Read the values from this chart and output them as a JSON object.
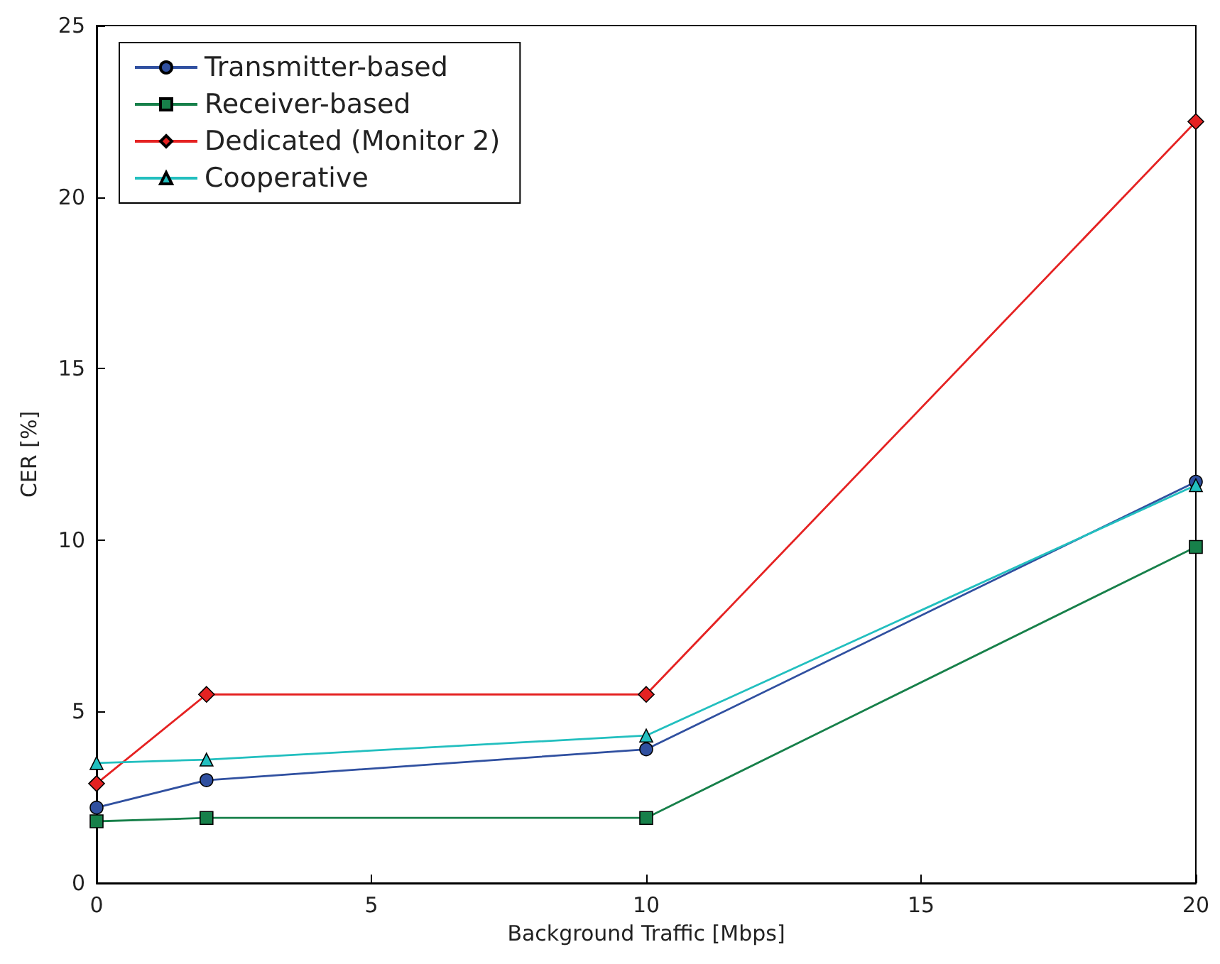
{
  "chart_data": {
    "type": "line",
    "xlabel": "Background Traffic [Mbps]",
    "ylabel": "CER [%]",
    "x": [
      0,
      2,
      10,
      20
    ],
    "xlim": [
      0,
      20
    ],
    "xticks": [
      0,
      5,
      10,
      15,
      20
    ],
    "ylim": [
      0,
      25
    ],
    "yticks": [
      0,
      5,
      10,
      15,
      20,
      25
    ],
    "grid": false,
    "legend": "top left",
    "line_style": "solid",
    "series": [
      {
        "name": "Transmitter-based",
        "color": "#3050a0",
        "marker": "circle",
        "values": [
          2.2,
          3.0,
          3.9,
          11.7
        ]
      },
      {
        "name": "Receiver-based",
        "color": "#17804a",
        "marker": "square",
        "values": [
          1.8,
          1.9,
          1.9,
          9.8
        ]
      },
      {
        "name": "Dedicated (Monitor 2)",
        "color": "#e52222",
        "marker": "diamond",
        "values": [
          2.9,
          5.5,
          5.5,
          22.2
        ]
      },
      {
        "name": "Cooperative",
        "color": "#22bfbf",
        "marker": "triangle",
        "values": [
          3.5,
          3.6,
          4.3,
          11.6
        ]
      }
    ]
  }
}
